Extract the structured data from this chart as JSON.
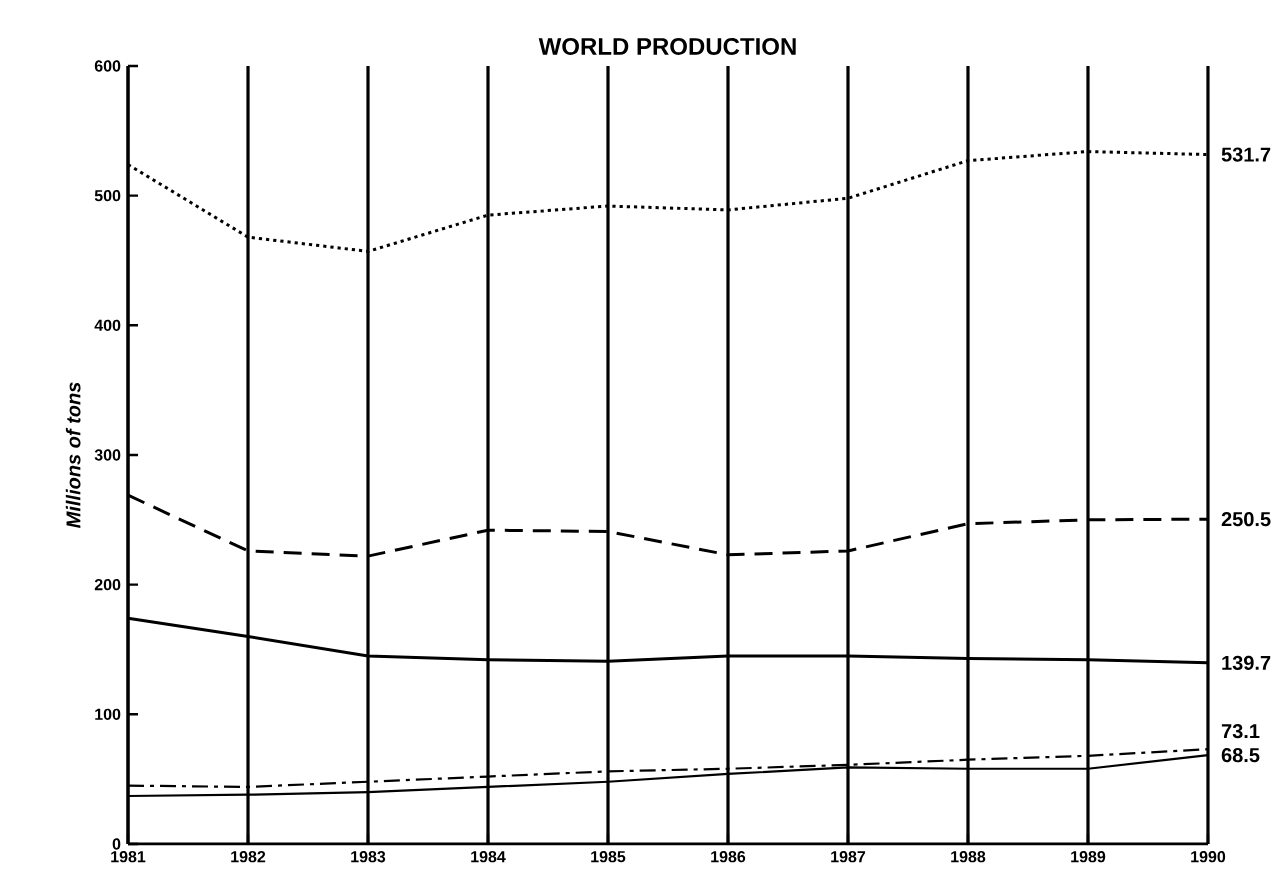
{
  "chart_data": {
    "type": "line",
    "title": "WORLD PRODUCTION",
    "ylabel": "*Millions of tons*",
    "categories": [
      "1981",
      "1982",
      "1983",
      "1984",
      "1985",
      "1986",
      "1987",
      "1988",
      "1989",
      "1990"
    ],
    "ylim": [
      0,
      600
    ],
    "yticks": [
      0,
      100,
      200,
      300,
      400,
      500,
      600
    ],
    "grid": "x",
    "series": [
      {
        "color": "#000000",
        "line_style": "dotted",
        "values": [
          524,
          468,
          457,
          485,
          492,
          489,
          498,
          527,
          534,
          531.7
        ],
        "value_labels": [
          null,
          null,
          null,
          null,
          null,
          null,
          null,
          null,
          null,
          "531.7"
        ]
      },
      {
        "color": "#000000",
        "line_style": "dashed",
        "values": [
          269,
          226,
          222,
          242,
          241,
          223,
          226,
          247,
          250,
          250.5
        ],
        "value_labels": [
          null,
          null,
          null,
          null,
          null,
          null,
          null,
          null,
          null,
          "250.5"
        ]
      },
      {
        "color": "#000000",
        "line_style": "solid",
        "values": [
          174,
          160,
          145,
          142,
          141,
          145,
          145,
          143,
          142,
          139.7
        ],
        "value_labels": [
          null,
          null,
          null,
          null,
          null,
          null,
          null,
          null,
          null,
          "139.7"
        ]
      },
      {
        "color": "#000000",
        "line_style": "dashdotted",
        "values": [
          45,
          44,
          48,
          52,
          56,
          58,
          61,
          65,
          68,
          73.1
        ],
        "value_labels": [
          null,
          null,
          null,
          null,
          null,
          null,
          null,
          null,
          null,
          "73.1"
        ]
      },
      {
        "color": "#000000",
        "line_style": "solid",
        "values": [
          37,
          38,
          40,
          44,
          48,
          54,
          59,
          58,
          58,
          68.5
        ],
        "value_labels": [
          null,
          null,
          null,
          null,
          null,
          null,
          null,
          null,
          null,
          "68.5"
        ]
      }
    ]
  }
}
